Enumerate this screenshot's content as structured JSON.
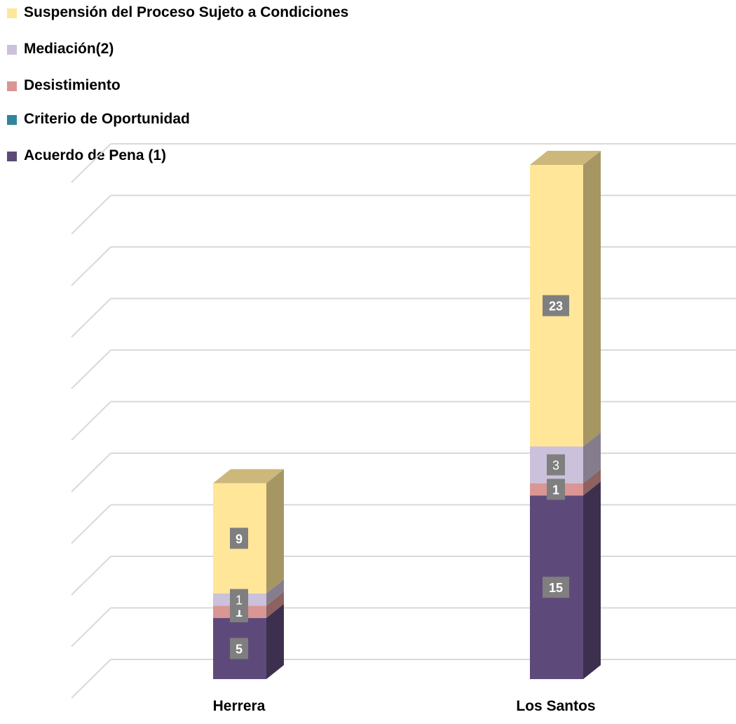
{
  "chart_data": {
    "type": "bar",
    "stacked": true,
    "three_d": true,
    "categories": [
      "Herrera",
      "Los Santos"
    ],
    "series": [
      {
        "name": "Acuerdo de Pena (1)",
        "color": "#5e4a7a",
        "values": [
          5,
          15
        ]
      },
      {
        "name": "Criterio de Oportunidad",
        "color": "#31859c",
        "values": [
          0,
          0
        ]
      },
      {
        "name": "Desistimiento",
        "color": "#d99694",
        "values": [
          1,
          1
        ]
      },
      {
        "name": "Mediación(2)",
        "color": "#ccc1da",
        "values": [
          1,
          3
        ]
      },
      {
        "name": "Suspensión del Proceso Sujeto a Condiciones",
        "color": "#ffe699",
        "values": [
          9,
          23
        ]
      }
    ],
    "legend_order": [
      4,
      3,
      2,
      1,
      0
    ],
    "legend_position": "top-left",
    "grid": true
  }
}
